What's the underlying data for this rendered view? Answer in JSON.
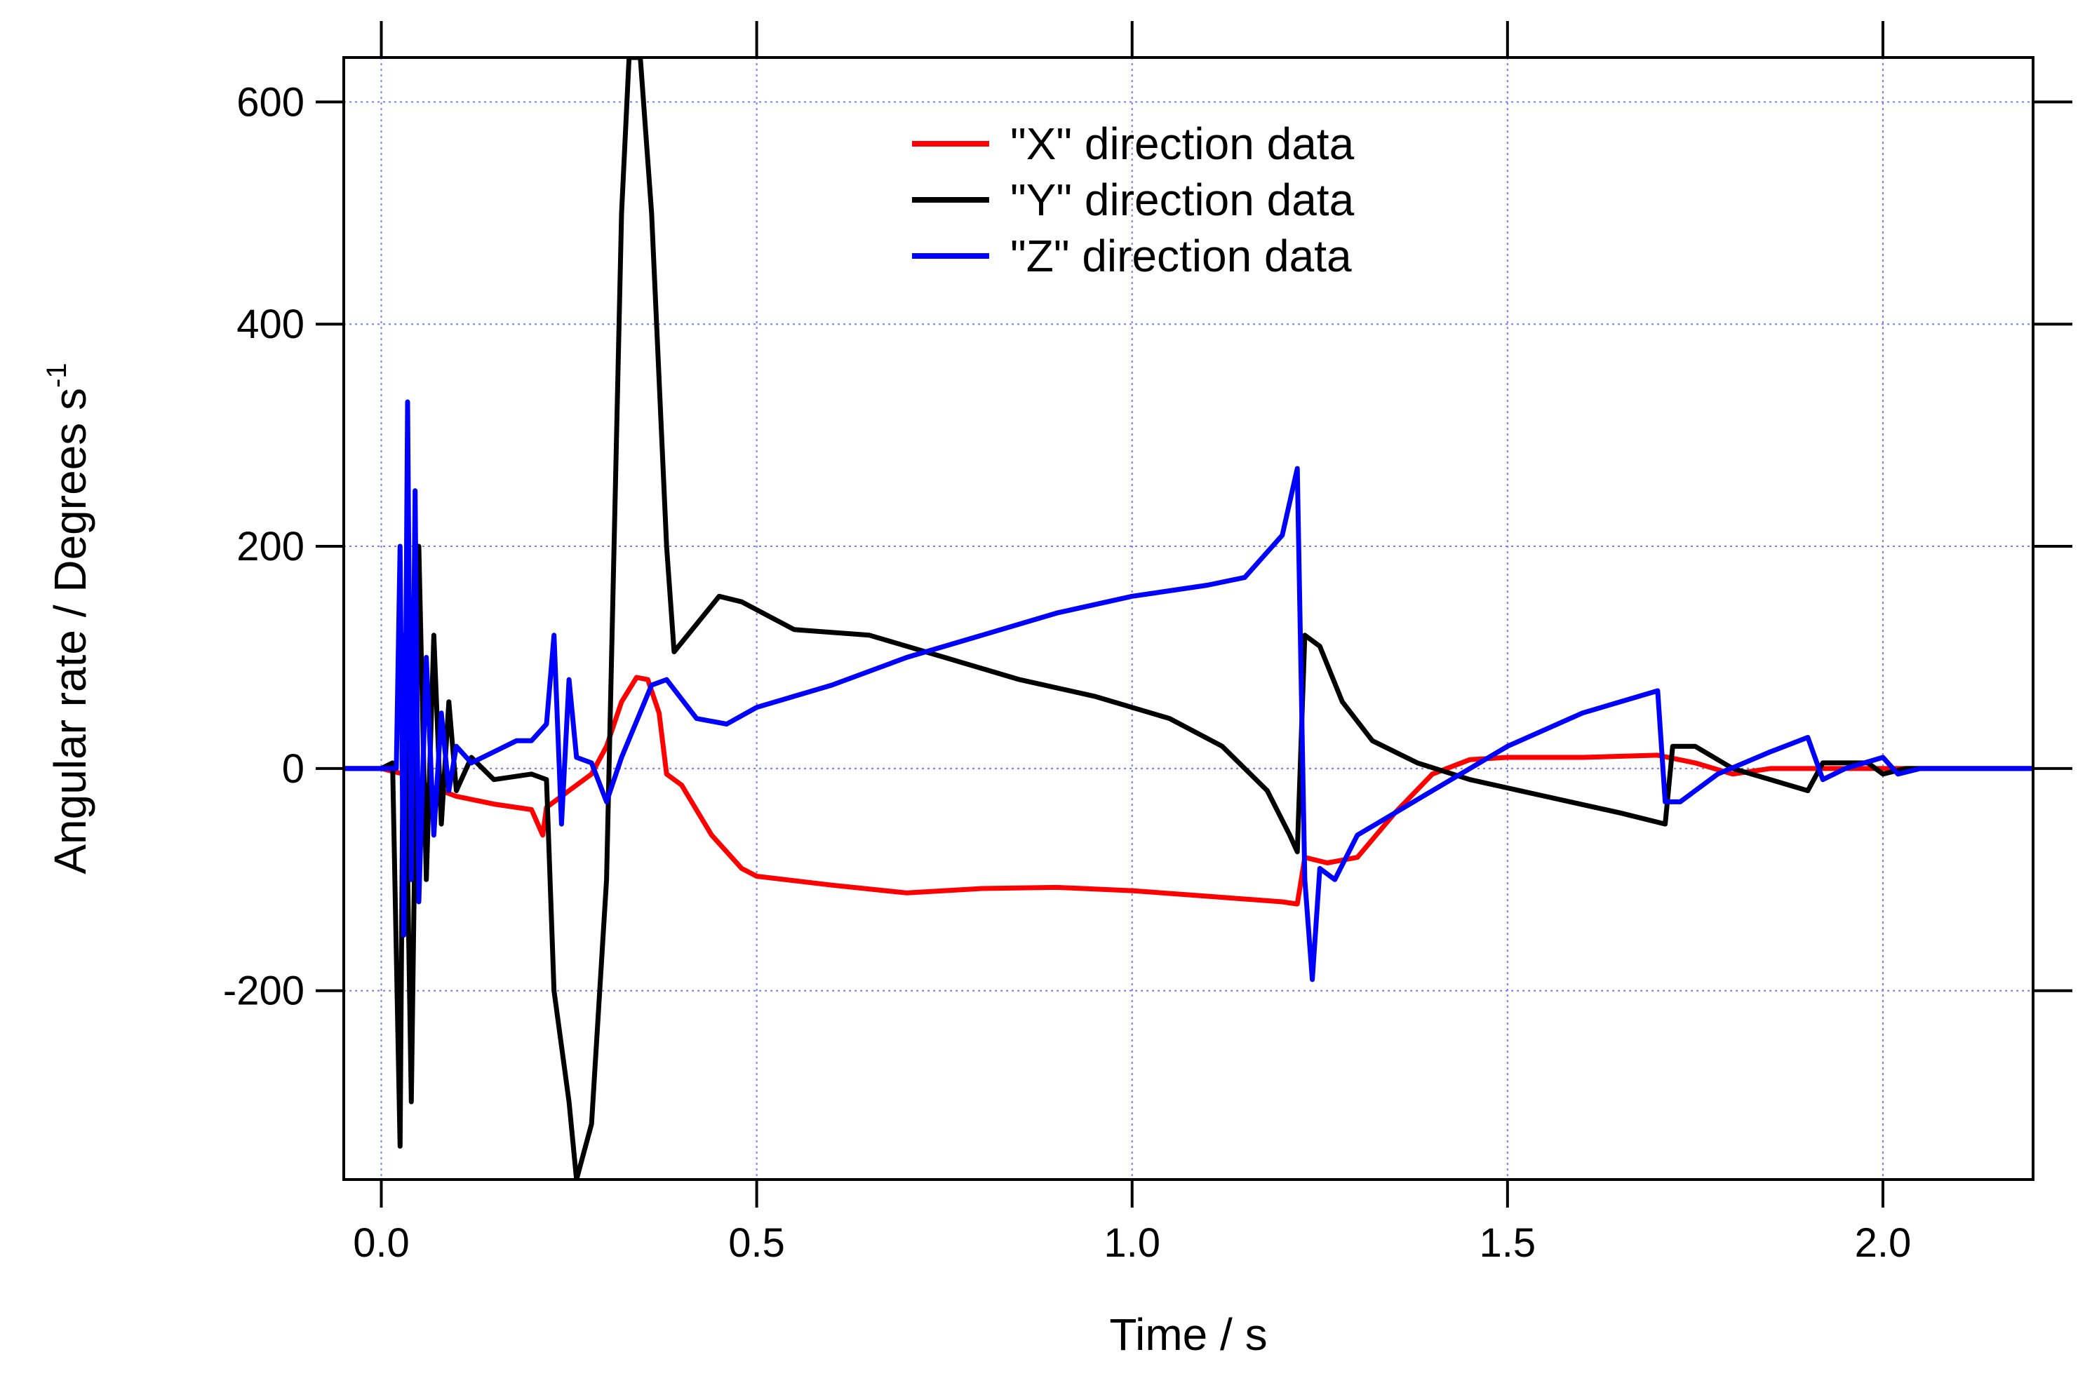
{
  "chart_data": {
    "type": "line",
    "title": "",
    "xlabel": "Time / s",
    "ylabel": "Angular rate / Degrees s",
    "ylabel_superscript": "-1",
    "xlim": [
      -0.05,
      2.2
    ],
    "ylim": [
      -370,
      640
    ],
    "xticks": [
      0.0,
      0.5,
      1.0,
      1.5,
      2.0
    ],
    "xtick_labels": [
      "0.0",
      "0.5",
      "1.0",
      "1.5",
      "2.0"
    ],
    "yticks": [
      -200,
      0,
      200,
      400,
      600
    ],
    "ytick_labels": [
      "-200",
      "0",
      "200",
      "400",
      "600"
    ],
    "grid": true,
    "legend_position": "top-center",
    "series": [
      {
        "name": "\"X\" direction data",
        "color": "#ff0000",
        "points": [
          [
            -0.05,
            0
          ],
          [
            0.0,
            0
          ],
          [
            0.03,
            -5
          ],
          [
            0.06,
            -15
          ],
          [
            0.1,
            -25
          ],
          [
            0.15,
            -32
          ],
          [
            0.2,
            -37
          ],
          [
            0.215,
            -60
          ],
          [
            0.22,
            -35
          ],
          [
            0.25,
            -20
          ],
          [
            0.28,
            -5
          ],
          [
            0.3,
            20
          ],
          [
            0.32,
            60
          ],
          [
            0.34,
            82
          ],
          [
            0.355,
            80
          ],
          [
            0.37,
            50
          ],
          [
            0.38,
            -5
          ],
          [
            0.4,
            -15
          ],
          [
            0.44,
            -60
          ],
          [
            0.48,
            -90
          ],
          [
            0.5,
            -97
          ],
          [
            0.6,
            -105
          ],
          [
            0.7,
            -112
          ],
          [
            0.8,
            -108
          ],
          [
            0.9,
            -107
          ],
          [
            1.0,
            -110
          ],
          [
            1.1,
            -115
          ],
          [
            1.2,
            -120
          ],
          [
            1.22,
            -122
          ],
          [
            1.23,
            -80
          ],
          [
            1.26,
            -85
          ],
          [
            1.3,
            -80
          ],
          [
            1.35,
            -40
          ],
          [
            1.4,
            -5
          ],
          [
            1.45,
            8
          ],
          [
            1.5,
            10
          ],
          [
            1.6,
            10
          ],
          [
            1.7,
            12
          ],
          [
            1.75,
            5
          ],
          [
            1.8,
            -5
          ],
          [
            1.85,
            0
          ],
          [
            1.9,
            0
          ],
          [
            2.0,
            0
          ],
          [
            2.1,
            0
          ],
          [
            2.2,
            0
          ]
        ]
      },
      {
        "name": "\"Y\" direction data",
        "color": "#000000",
        "points": [
          [
            -0.05,
            0
          ],
          [
            0.0,
            0
          ],
          [
            0.015,
            5
          ],
          [
            0.025,
            -340
          ],
          [
            0.03,
            120
          ],
          [
            0.04,
            -300
          ],
          [
            0.05,
            200
          ],
          [
            0.06,
            -100
          ],
          [
            0.07,
            120
          ],
          [
            0.08,
            -50
          ],
          [
            0.09,
            60
          ],
          [
            0.1,
            -20
          ],
          [
            0.12,
            10
          ],
          [
            0.15,
            -10
          ],
          [
            0.2,
            -5
          ],
          [
            0.22,
            -10
          ],
          [
            0.23,
            -200
          ],
          [
            0.25,
            -300
          ],
          [
            0.26,
            -370
          ],
          [
            0.28,
            -320
          ],
          [
            0.3,
            -100
          ],
          [
            0.31,
            200
          ],
          [
            0.32,
            500
          ],
          [
            0.33,
            640
          ],
          [
            0.345,
            640
          ],
          [
            0.36,
            500
          ],
          [
            0.38,
            200
          ],
          [
            0.39,
            105
          ],
          [
            0.42,
            130
          ],
          [
            0.45,
            155
          ],
          [
            0.48,
            150
          ],
          [
            0.55,
            125
          ],
          [
            0.65,
            120
          ],
          [
            0.75,
            100
          ],
          [
            0.85,
            80
          ],
          [
            0.95,
            65
          ],
          [
            1.05,
            45
          ],
          [
            1.12,
            20
          ],
          [
            1.18,
            -20
          ],
          [
            1.21,
            -60
          ],
          [
            1.22,
            -75
          ],
          [
            1.23,
            120
          ],
          [
            1.25,
            110
          ],
          [
            1.28,
            60
          ],
          [
            1.32,
            25
          ],
          [
            1.38,
            5
          ],
          [
            1.45,
            -10
          ],
          [
            1.55,
            -25
          ],
          [
            1.65,
            -40
          ],
          [
            1.71,
            -50
          ],
          [
            1.72,
            20
          ],
          [
            1.75,
            20
          ],
          [
            1.8,
            0
          ],
          [
            1.9,
            -20
          ],
          [
            1.92,
            5
          ],
          [
            1.98,
            5
          ],
          [
            2.0,
            -5
          ],
          [
            2.03,
            0
          ],
          [
            2.2,
            0
          ]
        ]
      },
      {
        "name": "\"Z\" direction data",
        "color": "#0000ff",
        "points": [
          [
            -0.05,
            0
          ],
          [
            0.0,
            0
          ],
          [
            0.02,
            0
          ],
          [
            0.025,
            200
          ],
          [
            0.03,
            -150
          ],
          [
            0.035,
            330
          ],
          [
            0.04,
            -100
          ],
          [
            0.045,
            250
          ],
          [
            0.05,
            -120
          ],
          [
            0.06,
            100
          ],
          [
            0.07,
            -60
          ],
          [
            0.08,
            50
          ],
          [
            0.09,
            -20
          ],
          [
            0.1,
            20
          ],
          [
            0.12,
            5
          ],
          [
            0.15,
            15
          ],
          [
            0.18,
            25
          ],
          [
            0.2,
            25
          ],
          [
            0.22,
            40
          ],
          [
            0.23,
            120
          ],
          [
            0.24,
            -50
          ],
          [
            0.25,
            80
          ],
          [
            0.26,
            10
          ],
          [
            0.28,
            5
          ],
          [
            0.3,
            -30
          ],
          [
            0.32,
            10
          ],
          [
            0.36,
            75
          ],
          [
            0.38,
            80
          ],
          [
            0.42,
            45
          ],
          [
            0.46,
            40
          ],
          [
            0.5,
            55
          ],
          [
            0.6,
            75
          ],
          [
            0.7,
            100
          ],
          [
            0.8,
            120
          ],
          [
            0.9,
            140
          ],
          [
            1.0,
            155
          ],
          [
            1.1,
            165
          ],
          [
            1.15,
            172
          ],
          [
            1.2,
            210
          ],
          [
            1.22,
            270
          ],
          [
            1.23,
            -100
          ],
          [
            1.24,
            -190
          ],
          [
            1.25,
            -90
          ],
          [
            1.27,
            -100
          ],
          [
            1.3,
            -60
          ],
          [
            1.35,
            -40
          ],
          [
            1.4,
            -20
          ],
          [
            1.5,
            20
          ],
          [
            1.6,
            50
          ],
          [
            1.7,
            70
          ],
          [
            1.71,
            -30
          ],
          [
            1.73,
            -30
          ],
          [
            1.78,
            -5
          ],
          [
            1.85,
            15
          ],
          [
            1.9,
            28
          ],
          [
            1.92,
            -10
          ],
          [
            1.95,
            0
          ],
          [
            2.0,
            10
          ],
          [
            2.02,
            -5
          ],
          [
            2.05,
            0
          ],
          [
            2.2,
            0
          ]
        ]
      }
    ]
  }
}
